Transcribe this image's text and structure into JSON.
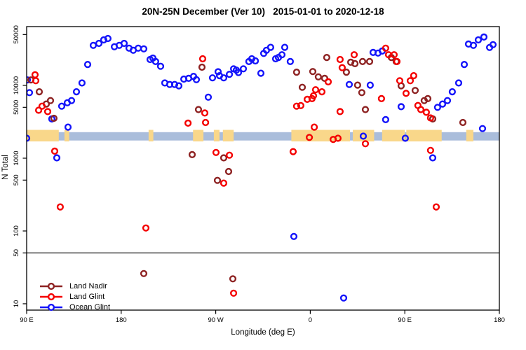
{
  "title": "20N-25N December (Ver 10)   2015-01-01 to 2020-12-18",
  "chart_data": {
    "type": "scatter",
    "title": "20N-25N December (Ver 10)   2015-01-01 to 2020-12-18",
    "xlabel": "Longitude (deg E)",
    "ylabel": "N Total",
    "x_axis": {
      "span_deg": 450,
      "ticks": [
        {
          "deg": 0,
          "label": "90 E"
        },
        {
          "deg": 90,
          "label": "180"
        },
        {
          "deg": 180,
          "label": "90 W"
        },
        {
          "deg": 270,
          "label": "0"
        },
        {
          "deg": 360,
          "label": "90 E"
        },
        {
          "deg": 450,
          "label": "180"
        }
      ]
    },
    "y_axis": {
      "scale": "log10",
      "ticks": [
        10,
        50,
        100,
        500,
        1000,
        5000,
        10000,
        50000
      ],
      "log_min": 0.913,
      "log_max": 4.808
    },
    "grid": "off",
    "legend_position": "bottom-left",
    "threshold_line": {
      "n": 50,
      "color": "#8f8f8f"
    },
    "map_strip": {
      "n_top": 2450,
      "n_bottom": 1700,
      "ocean_n_top": 2280,
      "ocean_n_bottom": 1750,
      "ocean_color": "#aabddb",
      "land_color": "#f9d78a",
      "land_segments_deg": [
        [
          0,
          30.6
        ],
        [
          36,
          40.5
        ],
        [
          116.1,
          120.6
        ],
        [
          158.4,
          168.3
        ],
        [
          178.2,
          183.6
        ],
        [
          186.8,
          197.1
        ],
        [
          252,
          307.8
        ],
        [
          310.5,
          330.8
        ],
        [
          338.4,
          360
        ],
        [
          361.4,
          395.1
        ],
        [
          418.5,
          425.3
        ]
      ]
    },
    "marker": {
      "shape": "open-circle",
      "radius": 3.9,
      "stroke_width": 2.4
    },
    "series": [
      {
        "name": "Land Nadir",
        "color": "#8e2323",
        "points": [
          [
            4.0,
            11900
          ],
          [
            12.0,
            8180
          ],
          [
            18.7,
            5550
          ],
          [
            22.7,
            6180
          ],
          [
            26.0,
            3530
          ],
          [
            166.9,
            17800
          ],
          [
            163.6,
            4660
          ],
          [
            257.0,
            15200
          ],
          [
            262.4,
            9430
          ],
          [
            272.4,
            15500
          ],
          [
            277.7,
            13100
          ],
          [
            283.7,
            12500
          ],
          [
            285.7,
            24200
          ],
          [
            304.4,
            15200
          ],
          [
            308.5,
            20800
          ],
          [
            312.5,
            19900
          ],
          [
            315.1,
            10100
          ],
          [
            319.1,
            7960
          ],
          [
            319.8,
            21300
          ],
          [
            326.5,
            21300
          ],
          [
            347.2,
            24200
          ],
          [
            351.8,
            21300
          ],
          [
            356.5,
            9870
          ],
          [
            369.9,
            8530
          ],
          [
            378.5,
            6180
          ],
          [
            381.9,
            6580
          ],
          [
            322.5,
            4660
          ],
          [
            386.6,
            3460
          ],
          [
            415.3,
            3090
          ],
          [
            157.6,
            1120
          ],
          [
            187.6,
            1010
          ],
          [
            192.3,
            657
          ],
          [
            181.6,
            495
          ],
          [
            111.5,
            26
          ],
          [
            196.3,
            22
          ]
        ]
      },
      {
        "name": "Land Glint",
        "color": "#f40000",
        "points": [
          [
            8.0,
            14000
          ],
          [
            8.7,
            11600
          ],
          [
            11.4,
            4560
          ],
          [
            14.7,
            5180
          ],
          [
            20.0,
            4370
          ],
          [
            167.6,
            23200
          ],
          [
            169.6,
            4180
          ],
          [
            170.3,
            3090
          ],
          [
            153.6,
            3030
          ],
          [
            253.7,
            1230
          ],
          [
            257.0,
            5180
          ],
          [
            261.0,
            5290
          ],
          [
            267.1,
            6440
          ],
          [
            271.7,
            6580
          ],
          [
            273.1,
            7200
          ],
          [
            275.1,
            8720
          ],
          [
            281.1,
            8180
          ],
          [
            287.1,
            11200
          ],
          [
            269.1,
            1930
          ],
          [
            273.8,
            2670
          ],
          [
            291.8,
            1810
          ],
          [
            296.4,
            1880
          ],
          [
            298.4,
            22700
          ],
          [
            300.4,
            17500
          ],
          [
            311.8,
            26400
          ],
          [
            298.4,
            4370
          ],
          [
            341.8,
            32500
          ],
          [
            344.5,
            26400
          ],
          [
            349.8,
            26400
          ],
          [
            352.5,
            21300
          ],
          [
            337.8,
            6580
          ],
          [
            355.2,
            11600
          ],
          [
            361.2,
            7790
          ],
          [
            365.2,
            11600
          ],
          [
            368.5,
            13600
          ],
          [
            372.5,
            5300
          ],
          [
            375.2,
            4660
          ],
          [
            380.5,
            4270
          ],
          [
            384.5,
            3570
          ],
          [
            322.5,
            1580
          ],
          [
            384.5,
            1280
          ],
          [
            26.7,
            1250
          ],
          [
            32.0,
            214
          ],
          [
            113.5,
            110
          ],
          [
            180.3,
            1200
          ],
          [
            193.0,
            1100
          ],
          [
            187.6,
            455
          ],
          [
            389.9,
            214
          ],
          [
            197.0,
            14
          ]
        ]
      },
      {
        "name": "Ocean Glint",
        "color": "#1414fa",
        "points": [
          [
            0.0,
            1880
          ],
          [
            0.7,
            11900
          ],
          [
            2.7,
            7960
          ],
          [
            24.0,
            3460
          ],
          [
            28.7,
            1010
          ],
          [
            39.4,
            2670
          ],
          [
            33.4,
            5180
          ],
          [
            38.7,
            5780
          ],
          [
            42.7,
            6180
          ],
          [
            47.4,
            8180
          ],
          [
            52.7,
            10800
          ],
          [
            58.1,
            19400
          ],
          [
            63.4,
            35500
          ],
          [
            68.8,
            37800
          ],
          [
            73.4,
            42200
          ],
          [
            77.4,
            44100
          ],
          [
            83.5,
            34000
          ],
          [
            88.1,
            35500
          ],
          [
            92.8,
            37800
          ],
          [
            97.5,
            32500
          ],
          [
            101.5,
            30400
          ],
          [
            106.2,
            32500
          ],
          [
            111.5,
            31800
          ],
          [
            117.5,
            22700
          ],
          [
            120.2,
            23700
          ],
          [
            122.8,
            21300
          ],
          [
            127.5,
            18300
          ],
          [
            131.5,
            10800
          ],
          [
            136.2,
            10300
          ],
          [
            140.9,
            10300
          ],
          [
            144.9,
            9870
          ],
          [
            149.6,
            12200
          ],
          [
            154.2,
            12500
          ],
          [
            158.9,
            13300
          ],
          [
            161.6,
            12000
          ],
          [
            172.9,
            6890
          ],
          [
            176.9,
            12700
          ],
          [
            182.3,
            15400
          ],
          [
            183.6,
            13600
          ],
          [
            187.6,
            12700
          ],
          [
            193.0,
            14200
          ],
          [
            197.0,
            16900
          ],
          [
            199.6,
            16200
          ],
          [
            201.6,
            15000
          ],
          [
            206.3,
            16900
          ],
          [
            211.6,
            21300
          ],
          [
            214.3,
            23200
          ],
          [
            217.7,
            21700
          ],
          [
            223.0,
            14700
          ],
          [
            225.7,
            27500
          ],
          [
            228.3,
            30400
          ],
          [
            232.3,
            33400
          ],
          [
            237.0,
            23200
          ],
          [
            239.7,
            24200
          ],
          [
            243.0,
            26400
          ],
          [
            245.7,
            33400
          ],
          [
            251.0,
            21300
          ],
          [
            307.1,
            10300
          ],
          [
            320.5,
            2010
          ],
          [
            327.1,
            10100
          ],
          [
            329.8,
            28400
          ],
          [
            334.5,
            27800
          ],
          [
            338.5,
            29700
          ],
          [
            341.8,
            3390
          ],
          [
            356.5,
            5100
          ],
          [
            360.5,
            1880
          ],
          [
            386.6,
            1010
          ],
          [
            391.2,
            5000
          ],
          [
            395.9,
            5550
          ],
          [
            400.6,
            6180
          ],
          [
            405.2,
            8180
          ],
          [
            411.3,
            10800
          ],
          [
            416.6,
            19400
          ],
          [
            420.6,
            37000
          ],
          [
            425.3,
            35500
          ],
          [
            430.0,
            42200
          ],
          [
            435.3,
            46200
          ],
          [
            440.7,
            33200
          ],
          [
            444.0,
            36300
          ],
          [
            434.0,
            2550
          ],
          [
            254.4,
            84
          ],
          [
            301.8,
            12
          ]
        ]
      }
    ]
  }
}
